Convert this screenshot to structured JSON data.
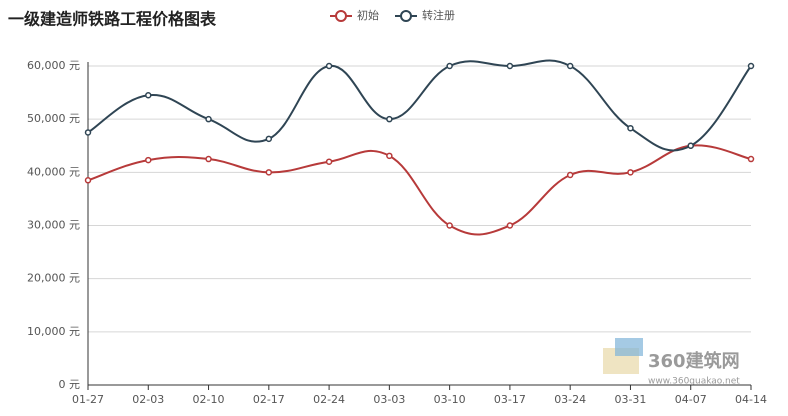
{
  "chart_data": {
    "type": "line",
    "title": "一级建造师铁路工程价格图表",
    "categories": [
      "01-27",
      "02-03",
      "02-10",
      "02-17",
      "02-24",
      "03-03",
      "03-10",
      "03-17",
      "03-24",
      "03-31",
      "04-07",
      "04-14"
    ],
    "series": [
      {
        "name": "初始",
        "color": "#b73a3a",
        "values": [
          38500,
          42300,
          42500,
          40000,
          42000,
          43100,
          30000,
          30000,
          39500,
          40000,
          45000,
          42500
        ]
      },
      {
        "name": "转注册",
        "color": "#2f4554",
        "values": [
          47500,
          54500,
          50000,
          46300,
          60000,
          50000,
          60000,
          60000,
          60000,
          48300,
          45000,
          60000
        ]
      }
    ],
    "ylim": [
      0,
      60000
    ],
    "yticks": [
      {
        "value": 0,
        "label": "0 元"
      },
      {
        "value": 10000,
        "label": "10,000 元"
      },
      {
        "value": 20000,
        "label": "20,000 元"
      },
      {
        "value": 30000,
        "label": "30,000 元"
      },
      {
        "value": 40000,
        "label": "40,000 元"
      },
      {
        "value": 50000,
        "label": "50,000 元"
      },
      {
        "value": 60000,
        "label": "60,000 元"
      }
    ],
    "grid": true,
    "smooth": true,
    "legend_position": "top",
    "watermark": {
      "name": "360建筑网",
      "url": "www.360quakao.net"
    }
  }
}
